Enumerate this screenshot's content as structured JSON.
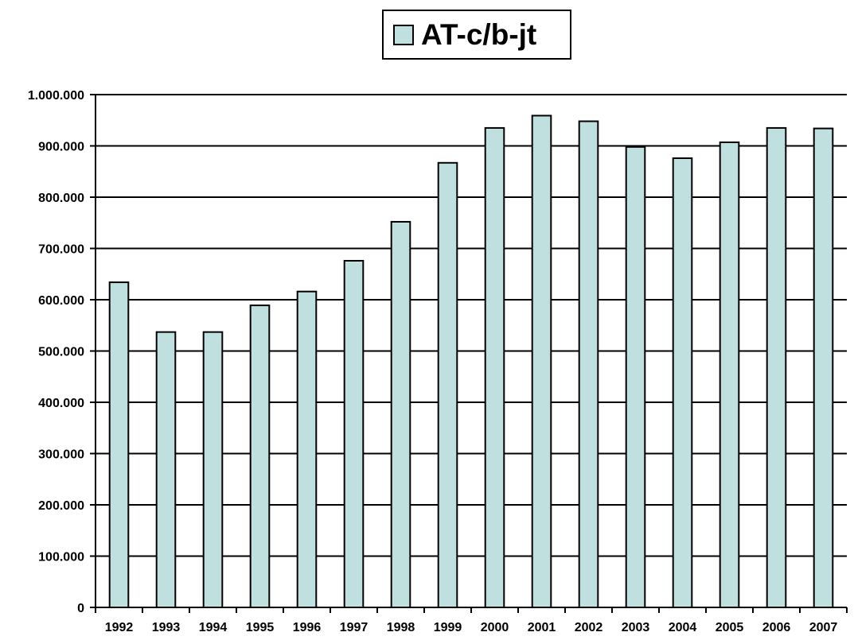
{
  "chart_data": {
    "type": "bar",
    "categories": [
      "1992",
      "1993",
      "1994",
      "1995",
      "1996",
      "1997",
      "1998",
      "1999",
      "2000",
      "2001",
      "2002",
      "2003",
      "2004",
      "2005",
      "2006",
      "2007"
    ],
    "series": [
      {
        "name": "AT-c/b-jt",
        "values": [
          634000,
          537000,
          537000,
          589000,
          616000,
          676000,
          752000,
          867000,
          935000,
          959000,
          948000,
          898000,
          876000,
          907000,
          935000,
          934000
        ]
      }
    ],
    "ylim": [
      0,
      1000000
    ],
    "ytick_values": [
      0,
      100000,
      200000,
      300000,
      400000,
      500000,
      600000,
      700000,
      800000,
      900000,
      1000000
    ],
    "ytick_labels": [
      "0",
      "100.000",
      "200.000",
      "300.000",
      "400.000",
      "500.000",
      "600.000",
      "700.000",
      "800.000",
      "900.000",
      "1.000.000"
    ],
    "grid": true,
    "legend_position": "top-center",
    "colors": {
      "bar_fill": "#c0e0e0",
      "bar_stroke": "#000000",
      "grid": "#000000"
    }
  }
}
